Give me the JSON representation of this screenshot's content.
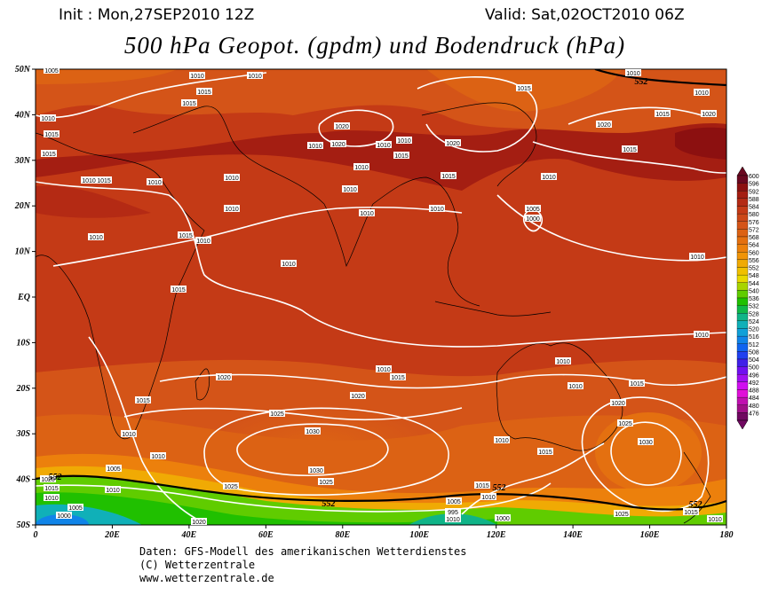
{
  "header": {
    "init": "Init : Mon,27SEP2010 12Z",
    "valid": "Valid: Sat,02OCT2010 06Z",
    "title": "500 hPa Geopot. (gpdm) und Bodendruck (hPa)"
  },
  "map": {
    "lat_labels": [
      "50N",
      "40N",
      "30N",
      "20N",
      "10N",
      "EQ",
      "10S",
      "20S",
      "30S",
      "40S",
      "50S"
    ],
    "lon_labels": [
      "0",
      "20E",
      "40E",
      "60E",
      "80E",
      "100E",
      "120E",
      "140E",
      "160E",
      "180"
    ],
    "isobar_labels": [
      "1005",
      "1010",
      "1010",
      "1015",
      "1015",
      "1010",
      "1015",
      "1015",
      "1010",
      "1015",
      "1010",
      "1010",
      "1010",
      "1010",
      "1015",
      "1010",
      "1010",
      "1015",
      "1020",
      "1020",
      "1010",
      "1010",
      "1015",
      "1010",
      "1010",
      "1015",
      "1020",
      "1010",
      "1010",
      "1010",
      "1015",
      "1010",
      "1010",
      "1015",
      "1020",
      "1020",
      "1015",
      "1010",
      "1005",
      "1000",
      "1010",
      "1010",
      "1010",
      "1010",
      "1015",
      "1010",
      "1020",
      "1015",
      "1020",
      "1015",
      "1025",
      "1030",
      "1010",
      "1010",
      "1005",
      "1010",
      "1030",
      "1025",
      "1025",
      "1010",
      "1015",
      "1020",
      "1025",
      "1030",
      "1015",
      "1010",
      "1005",
      "995",
      "1010",
      "1000",
      "1025",
      "1015",
      "1010",
      "1020",
      "1015",
      "1010",
      "1005",
      "1000",
      "1020"
    ],
    "geopot_labels": [
      "552",
      "552",
      "552",
      "552",
      "552"
    ]
  },
  "colorbar": {
    "labels": [
      "600",
      "596",
      "592",
      "588",
      "584",
      "580",
      "576",
      "572",
      "568",
      "564",
      "560",
      "556",
      "552",
      "548",
      "544",
      "540",
      "536",
      "532",
      "528",
      "524",
      "520",
      "516",
      "512",
      "508",
      "504",
      "500",
      "496",
      "492",
      "488",
      "484",
      "480",
      "476"
    ],
    "colors": [
      "#6a0820",
      "#8c1010",
      "#a41e12",
      "#b42a14",
      "#c43a16",
      "#cc4818",
      "#d45418",
      "#dc6214",
      "#e47010",
      "#ec800c",
      "#f09408",
      "#f0aa04",
      "#f0c000",
      "#e8d800",
      "#a8d400",
      "#60cc00",
      "#20c000",
      "#10b848",
      "#10b488",
      "#10b0b8",
      "#10a0d8",
      "#1084e8",
      "#1064f0",
      "#2040f0",
      "#4020e8",
      "#7010f0",
      "#a010f0",
      "#d010f0",
      "#e010d8",
      "#c010b0",
      "#a01088",
      "#700860"
    ]
  },
  "footer": {
    "line1": "Daten: GFS-Modell des amerikanischen Wetterdienstes",
    "line2": "(C) Wetterzentrale",
    "line3": "www.wetterzentrale.de"
  }
}
